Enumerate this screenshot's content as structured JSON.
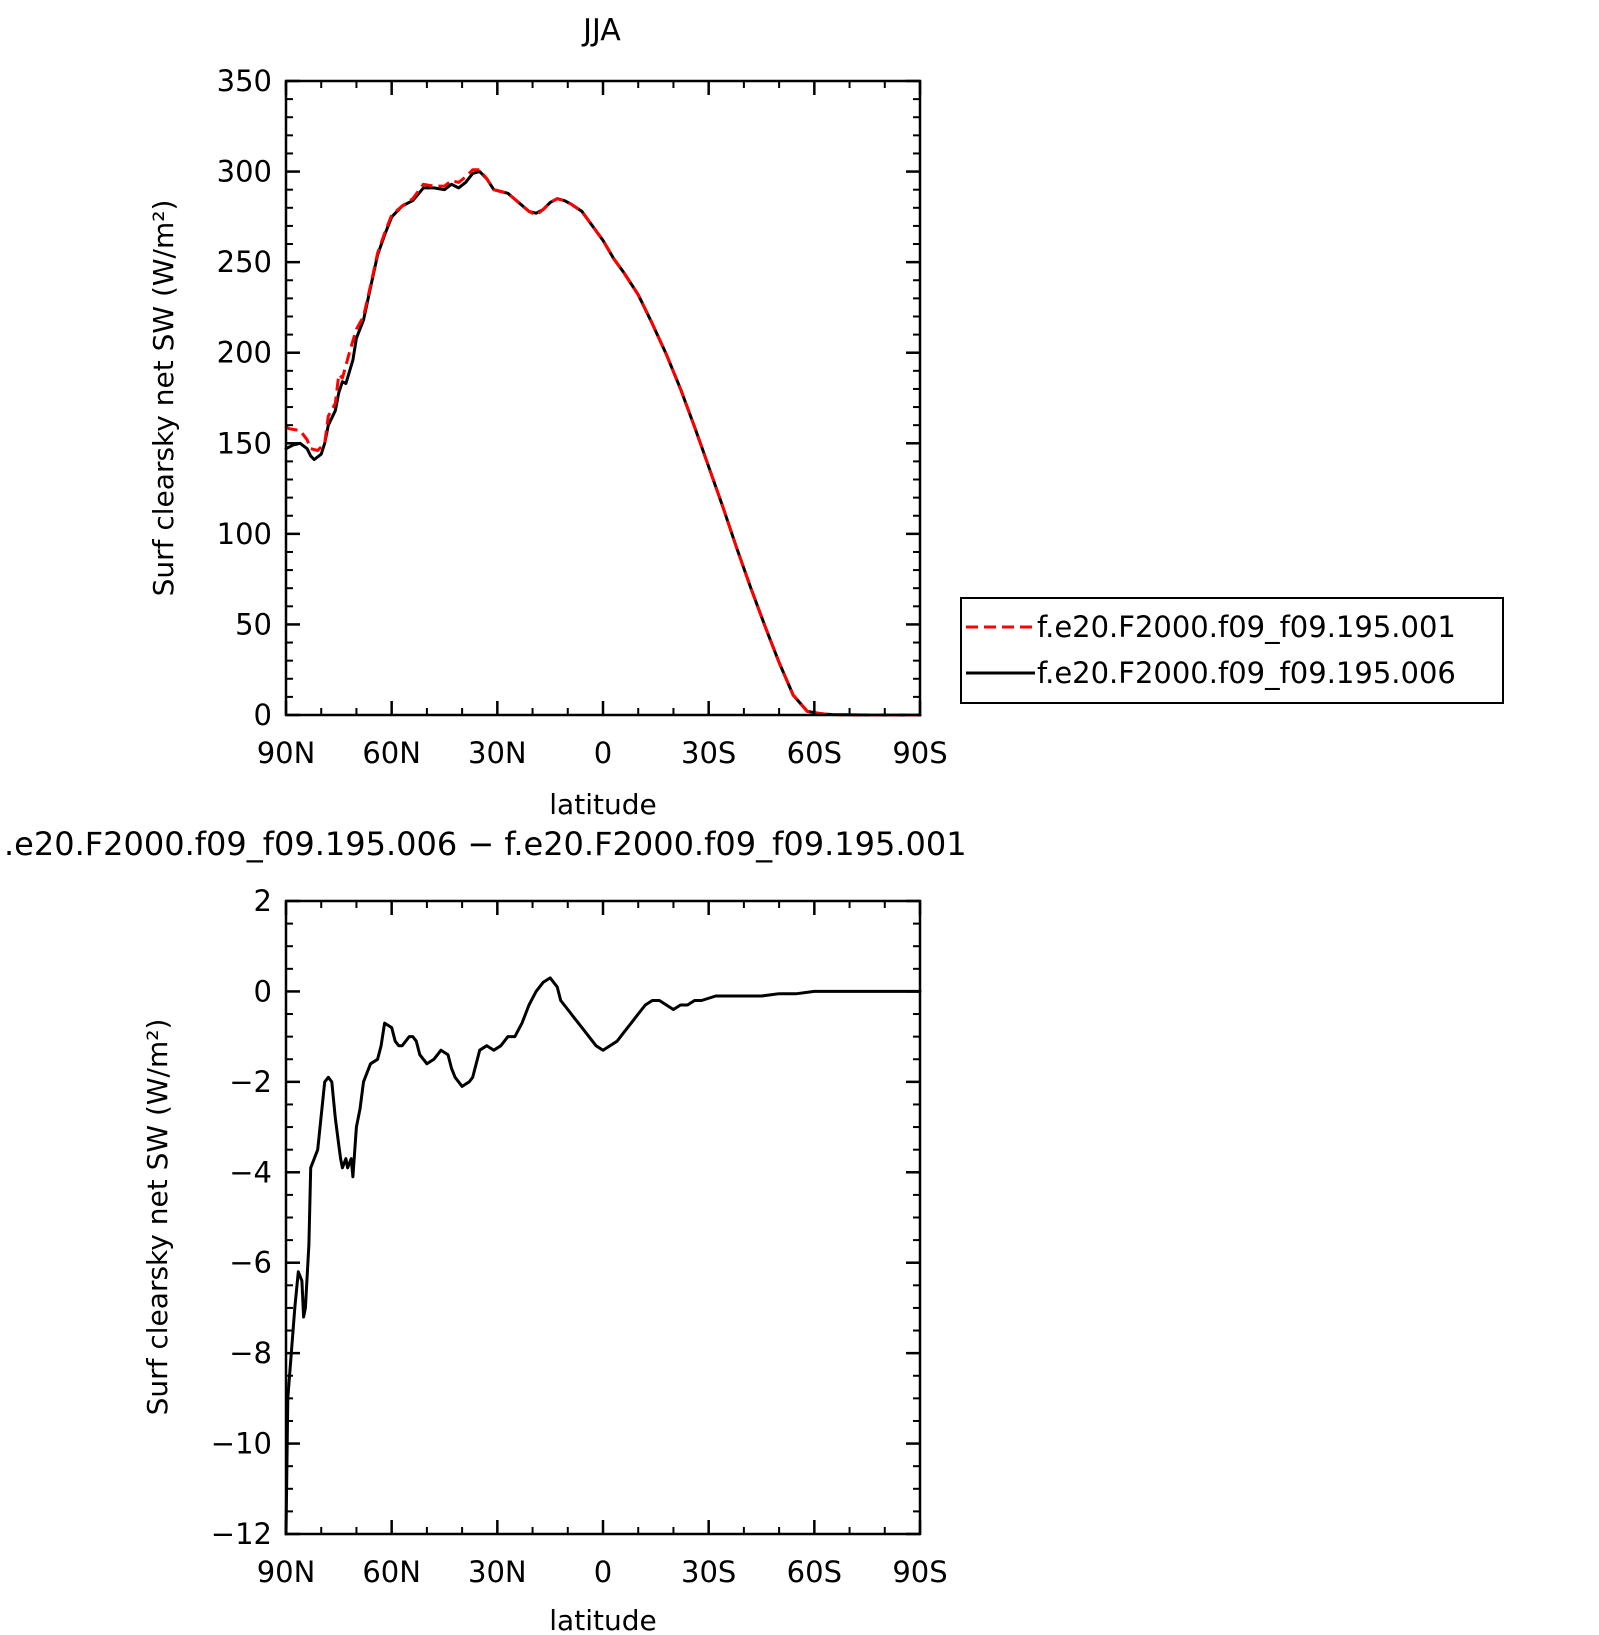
{
  "chart_data": [
    {
      "type": "line",
      "title": "JJA",
      "xlabel": "latitude",
      "ylabel": "Surf clearsky net SW (W/m²)",
      "x_ticks": [
        90,
        60,
        30,
        0,
        -30,
        -60,
        -90
      ],
      "x_tick_labels": [
        "90N",
        "60N",
        "30N",
        "0",
        "30S",
        "60S",
        "90S"
      ],
      "xlim": [
        90,
        -90
      ],
      "ylim": [
        0,
        350
      ],
      "y_ticks": [
        0,
        50,
        100,
        150,
        200,
        250,
        300,
        350
      ],
      "y_tick_labels": [
        "0",
        "50",
        "100",
        "150",
        "200",
        "250",
        "300",
        "350"
      ],
      "legend_position": "right",
      "series": [
        {
          "name": "f.e20.F2000.f09_f09.195.001",
          "color": "#ff0000",
          "dash": "dashed",
          "x": [
            90,
            89,
            86,
            84,
            83,
            81,
            79,
            78,
            76,
            75,
            74,
            72,
            70,
            68,
            66,
            64,
            62,
            60,
            57,
            54,
            51,
            48,
            45,
            43,
            41,
            39,
            37,
            35,
            33,
            31,
            29,
            27,
            24,
            21,
            19,
            17,
            15,
            13,
            11,
            9,
            6,
            3,
            0,
            -3,
            -6,
            -10,
            -14,
            -18,
            -22,
            -26,
            -30,
            -34,
            -38,
            -42,
            -46,
            -50,
            -54,
            -58,
            -61,
            -63,
            -65,
            -67,
            -70,
            -75,
            -80,
            -90
          ],
          "y": [
            159,
            158,
            157,
            152,
            147,
            146,
            150,
            165,
            172,
            188,
            186,
            200,
            213,
            220,
            237,
            255,
            266,
            276,
            281,
            285,
            293,
            292,
            292,
            295,
            294,
            297,
            301,
            301,
            296,
            290,
            289,
            288,
            283,
            278,
            276,
            279,
            283,
            285,
            284,
            282,
            278,
            270,
            262,
            252,
            244,
            232,
            216,
            199,
            180,
            159,
            137,
            115,
            92,
            70,
            49,
            29,
            11,
            2,
            1,
            0.5,
            0.3,
            0.2,
            0.1,
            0,
            0,
            0
          ]
        },
        {
          "name": "f.e20.F2000.f09_f09.195.006",
          "color": "#000000",
          "dash": "solid",
          "x": [
            90,
            88,
            86,
            84,
            83,
            82,
            80,
            79,
            78,
            76,
            75,
            74,
            73,
            71,
            70,
            68,
            66,
            64,
            62,
            60,
            57,
            54,
            51,
            48,
            45,
            43,
            41,
            39,
            37,
            35,
            33,
            31,
            29,
            27,
            24,
            21,
            19,
            17,
            15,
            13,
            11,
            9,
            6,
            3,
            0,
            -3,
            -6,
            -10,
            -14,
            -18,
            -22,
            -26,
            -30,
            -34,
            -38,
            -42,
            -46,
            -50,
            -54,
            -58,
            -61,
            -63,
            -65,
            -67,
            -70,
            -75,
            -80,
            -90
          ],
          "y": [
            147,
            149,
            150,
            147,
            143,
            141,
            144,
            150,
            160,
            168,
            178,
            184,
            183,
            196,
            208,
            218,
            236,
            254,
            265,
            275,
            281,
            284,
            291,
            291,
            290,
            293,
            291,
            294,
            299,
            300,
            296,
            290,
            289,
            288,
            283,
            278,
            277,
            279,
            283,
            285,
            284,
            282,
            278,
            270,
            262,
            252,
            244,
            232,
            216,
            199,
            180,
            159,
            137,
            115,
            92,
            70,
            49,
            29,
            11,
            2,
            1,
            0.5,
            0.3,
            0.2,
            0.1,
            0,
            0,
            0
          ]
        }
      ]
    },
    {
      "type": "line",
      "title": ".e20.F2000.f09_f09.195.006 − f.e20.F2000.f09_f09.195.001",
      "xlabel": "latitude",
      "ylabel": "Surf clearsky net SW (W/m²)",
      "x_ticks": [
        90,
        60,
        30,
        0,
        -30,
        -60,
        -90
      ],
      "x_tick_labels": [
        "90N",
        "60N",
        "30N",
        "0",
        "30S",
        "60S",
        "90S"
      ],
      "xlim": [
        90,
        -90
      ],
      "ylim": [
        -12,
        2
      ],
      "y_ticks": [
        2,
        0,
        -2,
        -4,
        -6,
        -8,
        -10,
        -12
      ],
      "y_tick_labels": [
        "2",
        "0",
        "−2",
        "−4",
        "−6",
        "−8",
        "−10",
        "−12"
      ],
      "series": [
        {
          "color": "#000000",
          "dash": "solid",
          "x": [
            90,
            89.5,
            88.5,
            87.5,
            86.5,
            85.5,
            85,
            84.5,
            83.5,
            83,
            81,
            79,
            78,
            77,
            76,
            75,
            74.5,
            74,
            73,
            72.5,
            71.5,
            71,
            70,
            69,
            68,
            67,
            66,
            64,
            63,
            62,
            60,
            59,
            58,
            57,
            55,
            54,
            53,
            52,
            51,
            50,
            48,
            46,
            44,
            43,
            42,
            40,
            38,
            37,
            36,
            35,
            33,
            31,
            29,
            27,
            25,
            23,
            21,
            19,
            17,
            15,
            14,
            13,
            12,
            10,
            8,
            6,
            4,
            2,
            0,
            -2,
            -4,
            -6,
            -8,
            -10,
            -12,
            -14,
            -16,
            -18,
            -20,
            -22,
            -24,
            -26,
            -28,
            -32,
            -36,
            -40,
            -45,
            -50,
            -55,
            -60,
            -65,
            -70,
            -75,
            -80,
            -90
          ],
          "y": [
            -12,
            -9,
            -8,
            -7,
            -6.2,
            -6.4,
            -7.2,
            -7,
            -5.6,
            -3.9,
            -3.5,
            -2,
            -1.9,
            -2,
            -2.8,
            -3.4,
            -3.7,
            -3.9,
            -3.7,
            -3.9,
            -3.7,
            -4.1,
            -3,
            -2.6,
            -2,
            -1.8,
            -1.6,
            -1.5,
            -1.2,
            -0.7,
            -0.8,
            -1.1,
            -1.2,
            -1.2,
            -1,
            -1,
            -1.1,
            -1.4,
            -1.5,
            -1.6,
            -1.5,
            -1.3,
            -1.4,
            -1.7,
            -1.9,
            -2.1,
            -2,
            -1.9,
            -1.6,
            -1.3,
            -1.2,
            -1.3,
            -1.2,
            -1,
            -1,
            -0.7,
            -0.3,
            0,
            0.2,
            0.3,
            0.2,
            0.1,
            -0.2,
            -0.4,
            -0.6,
            -0.8,
            -1,
            -1.2,
            -1.3,
            -1.2,
            -1.1,
            -0.9,
            -0.7,
            -0.5,
            -0.3,
            -0.2,
            -0.2,
            -0.3,
            -0.4,
            -0.3,
            -0.3,
            -0.2,
            -0.2,
            -0.1,
            -0.1,
            -0.1,
            -0.1,
            -0.05,
            -0.05,
            0,
            0,
            0,
            0,
            0,
            0
          ]
        }
      ]
    }
  ]
}
